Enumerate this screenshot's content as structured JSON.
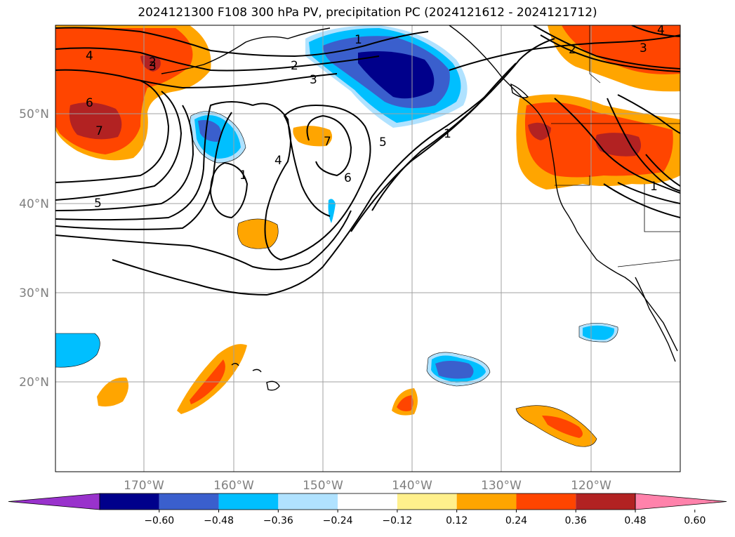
{
  "title": "2024121300 F108 300 hPa PV, precipitation PC (2024121612 - 2024121712)",
  "map": {
    "lat_labels": [
      "50°N",
      "40°N",
      "30°N",
      "20°N"
    ],
    "lon_labels": [
      "170°W",
      "160°W",
      "150°W",
      "140°W",
      "130°W",
      "120°W"
    ]
  },
  "pv_contour_labels": [
    "1",
    "2",
    "3",
    "4",
    "5",
    "6",
    "7",
    "1",
    "2",
    "3",
    "4",
    "5",
    "6",
    "7",
    "1",
    "1",
    "2",
    "3",
    "4"
  ],
  "colorbar": {
    "ticks": [
      "−0.60",
      "−0.48",
      "−0.36",
      "−0.24",
      "−0.12",
      "0.12",
      "0.24",
      "0.36",
      "0.48",
      "0.60"
    ],
    "colors": [
      "#9932cc",
      "#00008b",
      "#3a5fcd",
      "#00bfff",
      "#b0e2ff",
      "#ffffff",
      "#fff08c",
      "#ffa500",
      "#ff4500",
      "#b22222",
      "#ff82ab"
    ]
  }
}
